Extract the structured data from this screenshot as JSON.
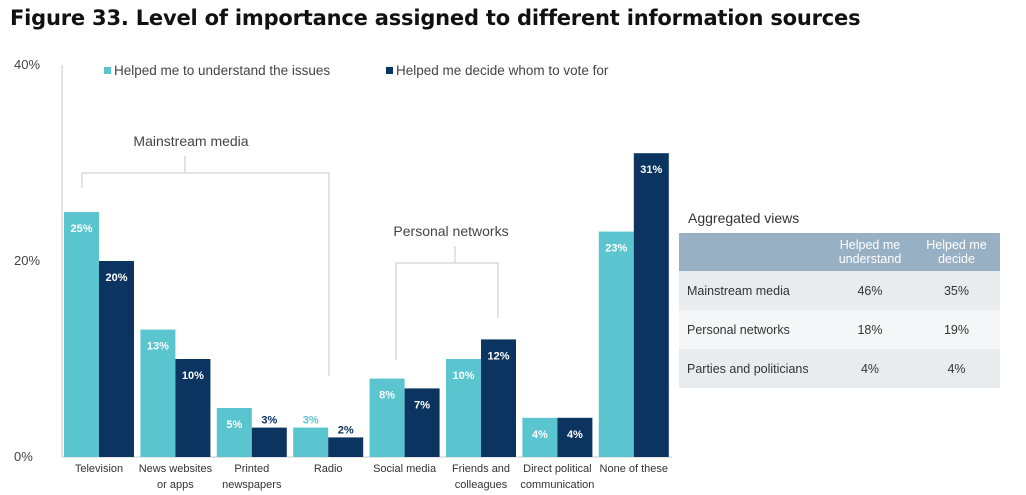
{
  "title": "Figure 33. Level of importance assigned to different information sources",
  "chart_data": {
    "type": "bar",
    "title": "Figure 33. Level of importance assigned to different information sources",
    "categories": [
      [
        "Television"
      ],
      [
        "News websites",
        "or apps"
      ],
      [
        "Printed",
        "newspapers"
      ],
      [
        "Radio"
      ],
      [
        "Social media"
      ],
      [
        "Friends and",
        "colleagues"
      ],
      [
        "Direct political",
        "communication"
      ],
      [
        "None of these"
      ]
    ],
    "series": [
      {
        "name": "Helped me to understand the issues",
        "values": [
          25,
          13,
          5,
          3,
          8,
          10,
          4,
          23
        ],
        "labels": [
          "25%",
          "13%",
          "5%",
          "3%",
          "8%",
          "10%",
          "4%",
          "23%"
        ],
        "color": "#5ac4cf"
      },
      {
        "name": "Helped me decide whom to vote for",
        "values": [
          20,
          10,
          3,
          2,
          7,
          12,
          4,
          31
        ],
        "labels": [
          "20%",
          "10%",
          "3%",
          "2%",
          "7%",
          "12%",
          "4%",
          "31%"
        ],
        "color": "#0b3460"
      }
    ],
    "ylim": [
      0,
      40
    ],
    "yticks": [
      "0%",
      "20%",
      "40%"
    ],
    "legend": "top-left",
    "grid": false,
    "annotations": [
      {
        "label": "Mainstream media",
        "categories": [
          0,
          3
        ]
      },
      {
        "label": "Personal networks",
        "categories": [
          4,
          5
        ]
      }
    ]
  },
  "aggregated": {
    "title": "Aggregated views",
    "headers": [
      "",
      "Helped me understand",
      "Helped me decide"
    ],
    "rows": [
      {
        "label": "Mainstream media",
        "understand": "46%",
        "decide": "35%"
      },
      {
        "label": "Personal networks",
        "understand": "18%",
        "decide": "19%"
      },
      {
        "label": "Parties and politicians",
        "understand": "4%",
        "decide": "4%"
      }
    ]
  }
}
